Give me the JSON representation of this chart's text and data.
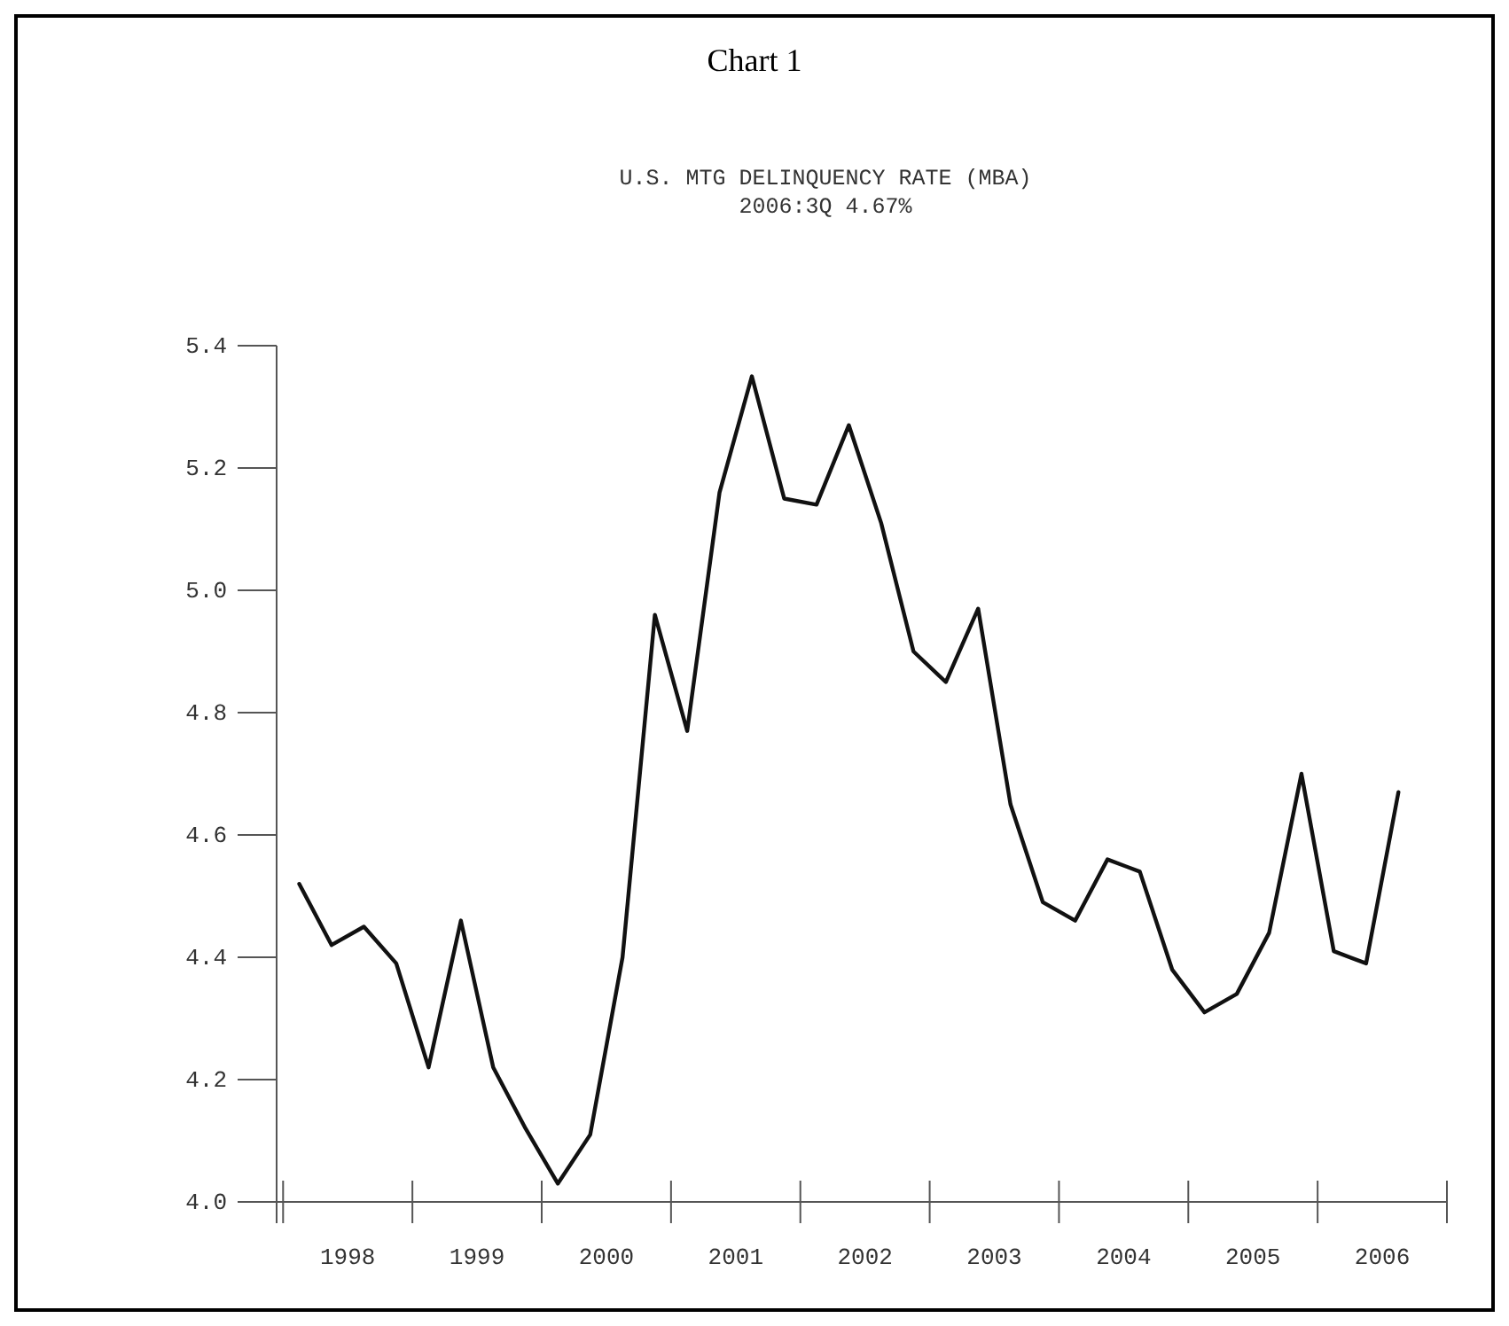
{
  "chart_data": {
    "type": "line",
    "title": "Chart 1",
    "subtitle": "U.S. MTG DELINQUENCY RATE (MBA)",
    "annotations": [
      "2006:3Q 4.67%"
    ],
    "x": [
      1998.125,
      1998.375,
      1998.625,
      1998.875,
      1999.125,
      1999.375,
      1999.625,
      1999.875,
      2000.125,
      2000.375,
      2000.625,
      2000.875,
      2001.125,
      2001.375,
      2001.625,
      2001.875,
      2002.125,
      2002.375,
      2002.625,
      2002.875,
      2003.125,
      2003.375,
      2003.625,
      2003.875,
      2004.125,
      2004.375,
      2004.625,
      2004.875,
      2005.125,
      2005.375,
      2005.625,
      2005.875,
      2006.125,
      2006.375,
      2006.625
    ],
    "series": [
      {
        "color": "#111111",
        "values": [
          4.52,
          4.42,
          4.45,
          4.39,
          4.22,
          4.46,
          4.22,
          4.12,
          4.03,
          4.11,
          4.4,
          4.96,
          4.77,
          5.16,
          5.35,
          5.15,
          5.14,
          5.27,
          5.11,
          4.9,
          4.85,
          4.97,
          4.65,
          4.49,
          4.46,
          4.56,
          4.54,
          4.38,
          4.31,
          4.34,
          4.44,
          4.7,
          4.41,
          4.39,
          4.67
        ]
      }
    ],
    "xlim": [
      1997.95,
      2007.0
    ],
    "xticks": [
      {
        "value": 1998.5,
        "label": "1998"
      },
      {
        "value": 1999.5,
        "label": "1999"
      },
      {
        "value": 2000.5,
        "label": "2000"
      },
      {
        "value": 2001.5,
        "label": "2001"
      },
      {
        "value": 2002.5,
        "label": "2002"
      },
      {
        "value": 2003.5,
        "label": "2003"
      },
      {
        "value": 2004.5,
        "label": "2004"
      },
      {
        "value": 2005.5,
        "label": "2005"
      },
      {
        "value": 2006.5,
        "label": "2006"
      }
    ],
    "ylim": [
      4.0,
      5.4
    ],
    "yticks": [
      {
        "value": 4.0,
        "label": "4.0"
      },
      {
        "value": 4.2,
        "label": "4.2"
      },
      {
        "value": 4.4,
        "label": "4.4"
      },
      {
        "value": 4.6,
        "label": "4.6"
      },
      {
        "value": 4.8,
        "label": "4.8"
      },
      {
        "value": 5.0,
        "label": "5.0"
      },
      {
        "value": 5.2,
        "label": "5.2"
      },
      {
        "value": 5.4,
        "label": "5.4"
      }
    ],
    "grid": false,
    "legend": false,
    "marker": "none",
    "line_style": "solid"
  }
}
